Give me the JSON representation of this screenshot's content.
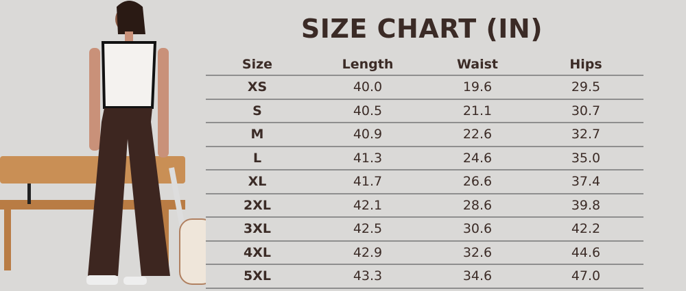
{
  "title": "SIZE CHART (IN)",
  "table": {
    "headers": [
      "Size",
      "Length",
      "Waist",
      "Hips"
    ],
    "rows": [
      [
        "XS",
        "40.0",
        "19.6",
        "29.5"
      ],
      [
        "S",
        "40.5",
        "21.1",
        "30.7"
      ],
      [
        "M",
        "40.9",
        "22.6",
        "32.7"
      ],
      [
        "L",
        "41.3",
        "24.6",
        "35.0"
      ],
      [
        "XL",
        "41.7",
        "26.6",
        "37.4"
      ],
      [
        "2XL",
        "42.1",
        "28.6",
        "39.8"
      ],
      [
        "3XL",
        "42.5",
        "30.6",
        "42.2"
      ],
      [
        "4XL",
        "42.9",
        "32.6",
        "44.6"
      ],
      [
        "5XL",
        "43.3",
        "34.6",
        "47.0"
      ]
    ]
  },
  "colors": {
    "text": "#3b2b26",
    "background": "#dad9d7",
    "pants": "#3d2620",
    "bench": "#c98f55"
  }
}
